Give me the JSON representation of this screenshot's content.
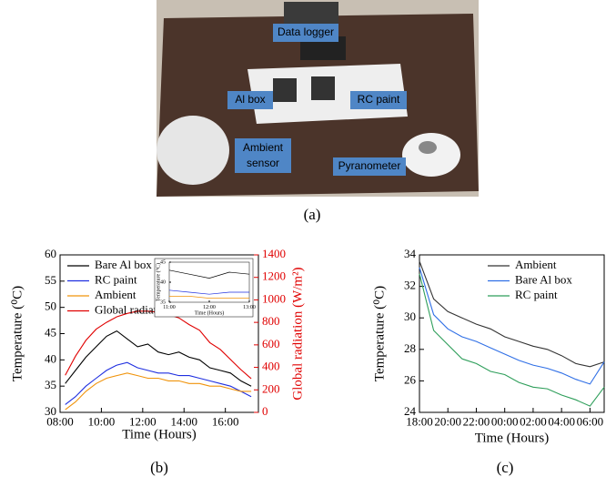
{
  "photo": {
    "labels": [
      "Data logger",
      "Al box",
      "RC paint",
      "Ambient",
      "sensor",
      "Pyranometer"
    ]
  },
  "captions": [
    "(a)",
    "(b)",
    "(c)"
  ],
  "chart_data": [
    {
      "type": "line",
      "xlabel": "Time (Hours)",
      "ylabel": "Temperature (⁰C)",
      "y2label": "Global radiation (W/m²)",
      "x": [
        8.25,
        8.75,
        9.25,
        9.75,
        10.25,
        10.75,
        11.25,
        11.75,
        12.25,
        12.75,
        13.25,
        13.75,
        14.25,
        14.75,
        15.25,
        15.75,
        16.25,
        16.75,
        17.25
      ],
      "xlim": [
        8,
        17.6
      ],
      "xticks": [
        {
          "value": 8,
          "label": "08:00"
        },
        {
          "value": 10,
          "label": "10:00"
        },
        {
          "value": 12,
          "label": "12:00"
        },
        {
          "value": 14,
          "label": "14:00"
        },
        {
          "value": 16,
          "label": "16:00"
        }
      ],
      "ylim": [
        30,
        60
      ],
      "yticks": [
        30,
        35,
        40,
        45,
        50,
        55,
        60
      ],
      "y2lim": [
        0,
        1400
      ],
      "y2ticks": [
        0,
        200,
        400,
        600,
        800,
        1000,
        1200,
        1400
      ],
      "legend": "upper left",
      "series": [
        {
          "name": "Bare Al box",
          "color": "#000000",
          "values": [
            35.5,
            38,
            40.5,
            42.5,
            44.5,
            45.5,
            44,
            42.5,
            43,
            41.5,
            41,
            41.5,
            40.5,
            40,
            38.5,
            38,
            37.5,
            36,
            35
          ]
        },
        {
          "name": "RC paint",
          "color": "#1f2fe0",
          "values": [
            31.5,
            33,
            35,
            36.5,
            38,
            39,
            39.5,
            38.5,
            38,
            37.5,
            37.5,
            37,
            37,
            36.5,
            36,
            35.5,
            35,
            34,
            33
          ]
        },
        {
          "name": "Ambient",
          "color": "#f0930a",
          "values": [
            30.5,
            32,
            34,
            35.5,
            36.5,
            37,
            37.5,
            37,
            36.5,
            36.5,
            36,
            36,
            35.5,
            35.5,
            35,
            35,
            34.5,
            34,
            34
          ]
        },
        {
          "name": "Global radiation",
          "color": "#e00000",
          "axis": "y2",
          "values": [
            330,
            500,
            640,
            740,
            800,
            850,
            880,
            900,
            900,
            890,
            870,
            840,
            780,
            730,
            620,
            560,
            470,
            380,
            300
          ]
        }
      ]
    },
    {
      "type": "line",
      "xlabel": "Time (Hours)",
      "ylabel": "Temperature (°C)",
      "x": [
        11,
        11.5,
        12,
        12.5,
        13
      ],
      "xlim": [
        11,
        13
      ],
      "xticks": [
        {
          "value": 11,
          "label": "11:00"
        },
        {
          "value": 12,
          "label": "12:00"
        },
        {
          "value": 13,
          "label": "13:00"
        }
      ],
      "ylim": [
        35,
        45
      ],
      "yticks": [
        35,
        40,
        45
      ],
      "series": [
        {
          "color": "#000000",
          "values": [
            43,
            42,
            41,
            42.5,
            42
          ]
        },
        {
          "color": "#1f2fe0",
          "values": [
            38,
            37.5,
            37,
            37.5,
            37.5
          ]
        },
        {
          "color": "#f0930a",
          "values": [
            36.5,
            36.5,
            36,
            36,
            36
          ]
        }
      ]
    },
    {
      "type": "line",
      "xlabel": "Time (Hours)",
      "ylabel": "Temperature (⁰C)",
      "x": [
        18,
        19,
        20,
        21,
        22,
        23,
        24,
        25,
        26,
        27,
        28,
        29,
        30,
        31
      ],
      "xlim": [
        18,
        31
      ],
      "xticks": [
        {
          "value": 18,
          "label": "18:00"
        },
        {
          "value": 20,
          "label": "20:00"
        },
        {
          "value": 22,
          "label": "22:00"
        },
        {
          "value": 24,
          "label": "00:00"
        },
        {
          "value": 26,
          "label": "02:00"
        },
        {
          "value": 28,
          "label": "04:00"
        },
        {
          "value": 30,
          "label": "06:00"
        }
      ],
      "ylim": [
        24,
        34
      ],
      "yticks": [
        24,
        26,
        28,
        30,
        32,
        34
      ],
      "legend": "upper right",
      "series": [
        {
          "name": "Ambient",
          "color": "#333333",
          "values": [
            33.6,
            31.2,
            30.4,
            30,
            29.6,
            29.3,
            28.8,
            28.5,
            28.2,
            28,
            27.6,
            27.1,
            26.9,
            27.2
          ]
        },
        {
          "name": "Bare Al box",
          "color": "#2f6fe6",
          "values": [
            33.2,
            30.2,
            29.3,
            28.8,
            28.5,
            28.1,
            27.7,
            27.3,
            27,
            26.8,
            26.5,
            26.1,
            25.8,
            27.2
          ]
        },
        {
          "name": "RC paint",
          "color": "#2e9e5a",
          "values": [
            32.8,
            29.2,
            28.3,
            27.4,
            27.1,
            26.6,
            26.4,
            25.9,
            25.6,
            25.5,
            25.1,
            24.8,
            24.4,
            25.6
          ]
        }
      ]
    }
  ]
}
